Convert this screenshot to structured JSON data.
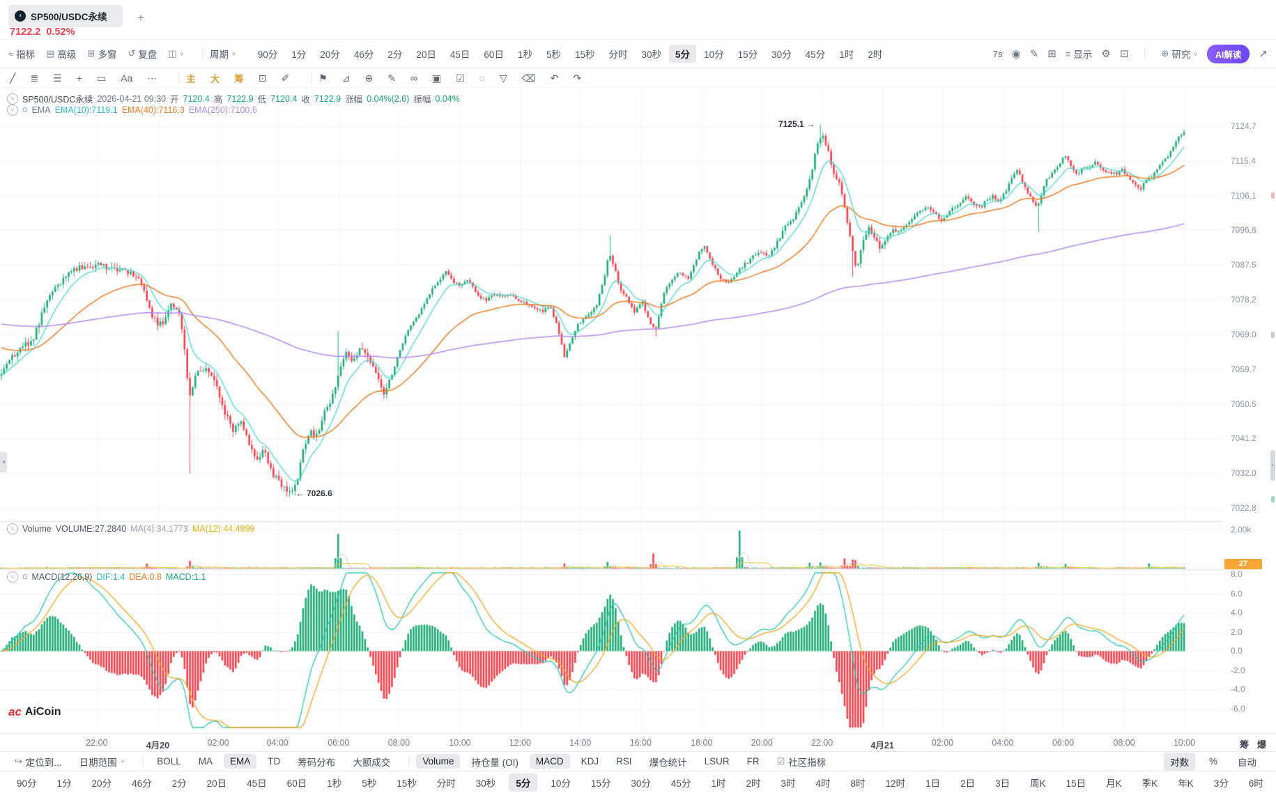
{
  "tab": {
    "symbol": "SP500/USDC永续",
    "price": "7122.2",
    "change": "0.52%",
    "add": "+"
  },
  "toolbar": {
    "menu": [
      {
        "name": "indicators",
        "label": "指标",
        "glyph": "≈"
      },
      {
        "name": "advanced",
        "label": "高级",
        "glyph": "▤"
      },
      {
        "name": "multi-window",
        "label": "多窗",
        "glyph": "⊞"
      },
      {
        "name": "replay",
        "label": "复盘",
        "glyph": "↺"
      }
    ],
    "chart_style_glyph": "◫",
    "cycle": "周期",
    "timeframes": [
      "90分",
      "1分",
      "20分",
      "46分",
      "2分",
      "20日",
      "45日",
      "60日",
      "1秒",
      "5秒",
      "15秒",
      "分时",
      "30秒",
      "5分",
      "10分",
      "15分",
      "30分",
      "45分",
      "1时",
      "2时"
    ],
    "selected": "5分",
    "countdown": "7s",
    "display": "显示",
    "research": "研究",
    "ai": "AI解读"
  },
  "draw_toolbar": {
    "tools": [
      {
        "name": "trendline-tool-icon",
        "glyph": "╱"
      },
      {
        "name": "horizontal-lines-tool-icon",
        "glyph": "≣"
      },
      {
        "name": "drawings-list-icon",
        "glyph": "☰"
      },
      {
        "name": "cross-tool-icon",
        "glyph": "+"
      },
      {
        "name": "rectangle-tool-icon",
        "glyph": "▭"
      },
      {
        "name": "text-tool-icon",
        "glyph": "Aa"
      },
      {
        "name": "more-tools-icon",
        "glyph": "⋯"
      },
      {
        "div": true
      },
      {
        "name": "main-chart-toggle",
        "glyph": "主",
        "gold": true
      },
      {
        "name": "large-view-toggle",
        "glyph": "大",
        "gold": true
      },
      {
        "name": "chip-distribution-toggle",
        "glyph": "筹",
        "gold": true
      },
      {
        "name": "chart-note-icon",
        "glyph": "⊡"
      },
      {
        "name": "brush-icon",
        "glyph": "✐"
      },
      {
        "div": true
      },
      {
        "name": "bookmark-icon",
        "glyph": "⚑"
      },
      {
        "name": "measure-icon",
        "glyph": "⊿"
      },
      {
        "name": "zoom-in-icon",
        "glyph": "⊕"
      },
      {
        "name": "highlighter-icon",
        "glyph": "✎"
      },
      {
        "name": "link-charts-icon",
        "glyph": "∞"
      },
      {
        "name": "clipboard-icon",
        "glyph": "▣"
      },
      {
        "name": "calendar-check-icon",
        "glyph": "☑"
      },
      {
        "name": "hide-drawings-icon",
        "glyph": "◌"
      },
      {
        "name": "filter-icon",
        "glyph": "▽"
      },
      {
        "name": "delete-icon",
        "glyph": "⌫"
      },
      {
        "name": "undo-icon",
        "glyph": "↶"
      },
      {
        "name": "redo-icon",
        "glyph": "↷"
      }
    ]
  },
  "overlays": {
    "ohlc": {
      "symbol": "SP500/USDC永续",
      "datetime": "2026-04-21 09:30",
      "o_label": "开",
      "o": "7120.4",
      "h_label": "高",
      "h": "7122.9",
      "l_label": "低",
      "l": "7120.4",
      "c_label": "收",
      "c": "7122.9",
      "chg_label": "涨幅",
      "chg": "0.04%(2.6)",
      "amp_label": "振幅",
      "amp": "0.04%"
    },
    "ema": {
      "label": "EMA",
      "e10": "EMA(10):7119.1",
      "e40": "EMA(40):7116.3",
      "e250": "EMA(250):7100.6"
    },
    "volume": {
      "label": "Volume",
      "vol": "VOLUME:27.2840",
      "ma4": "MA(4):34.1773",
      "ma12": "MA(12):44.4899"
    },
    "macd": {
      "label": "MACD(12,26,9)",
      "dif": "DIF:1.4",
      "dea": "DEA:0.8",
      "macd": "MACD:1.1"
    }
  },
  "axes": {
    "price": [
      "7124.7",
      "7115.4",
      "7106.1",
      "7096.8",
      "7087.5",
      "7078.2",
      "7069.0",
      "7059.7",
      "7050.5",
      "7041.2",
      "7032.0",
      "7022.8"
    ],
    "volume_top": "2.00k",
    "volume_badge": "27",
    "macd": [
      "8.0",
      "6.0",
      "4.0",
      "2.0",
      "0.0",
      "-2.0",
      "-4.0",
      "-6.0"
    ],
    "time": [
      {
        "t": "22:00",
        "f": 0.0793
      },
      {
        "t": "4月20",
        "f": 0.1293,
        "bold": true
      },
      {
        "t": "02:00",
        "f": 0.1787
      },
      {
        "t": "04:00",
        "f": 0.2273
      },
      {
        "t": "06:00",
        "f": 0.2773
      },
      {
        "t": "08:00",
        "f": 0.3267
      },
      {
        "t": "10:00",
        "f": 0.3767
      },
      {
        "t": "12:00",
        "f": 0.426
      },
      {
        "t": "14:00",
        "f": 0.4753
      },
      {
        "t": "16:00",
        "f": 0.5247
      },
      {
        "t": "18:00",
        "f": 0.5747
      },
      {
        "t": "20:00",
        "f": 0.624
      },
      {
        "t": "22:00",
        "f": 0.6733
      },
      {
        "t": "4月21",
        "f": 0.7227,
        "bold": true
      },
      {
        "t": "02:00",
        "f": 0.772
      },
      {
        "t": "04:00",
        "f": 0.8213
      },
      {
        "t": "06:00",
        "f": 0.8707
      },
      {
        "t": "08:00",
        "f": 0.9207
      },
      {
        "t": "10:00",
        "f": 0.97
      }
    ],
    "side": [
      "筹",
      "爆"
    ]
  },
  "annotations": {
    "high": "7125.1 →",
    "low": "← 7026.6"
  },
  "logo": {
    "mark": "ac",
    "name": "AiCoin"
  },
  "bottom": {
    "goto": "定位到...",
    "range": "日期范围",
    "groups": [
      [
        {
          "l": "BOLL"
        },
        {
          "l": "MA"
        },
        {
          "l": "EMA",
          "sel": true
        },
        {
          "l": "TD"
        },
        {
          "l": "筹码分布"
        },
        {
          "l": "大额成交"
        }
      ],
      [
        {
          "l": "Volume",
          "sel": true
        },
        {
          "l": "持仓量 (OI)"
        },
        {
          "l": "MACD",
          "sel": true
        },
        {
          "l": "KDJ"
        },
        {
          "l": "RSI"
        },
        {
          "l": "爆仓统计"
        },
        {
          "l": "LSUR"
        },
        {
          "l": "FR"
        }
      ]
    ],
    "community": "社区指标",
    "right": [
      {
        "l": "对数",
        "sel": true
      },
      {
        "l": "%"
      },
      {
        "l": "自动"
      }
    ]
  },
  "bottom_timeframes": {
    "list": [
      "90分",
      "1分",
      "20分",
      "46分",
      "2分",
      "20日",
      "45日",
      "60日",
      "1秒",
      "5秒",
      "15秒",
      "分时",
      "30秒",
      "5分",
      "10分",
      "15分",
      "30分",
      "45分",
      "1时",
      "2时",
      "3时",
      "4时",
      "8时",
      "12时",
      "1日",
      "2日",
      "3日",
      "周K",
      "15日",
      "月K",
      "季K",
      "年K",
      "3分",
      "6时"
    ],
    "selected": "5分",
    "close": "×"
  },
  "colors": {
    "up": "#1fab75",
    "down": "#f0424e",
    "ema10": "#3ed6cc",
    "ema40": "#ef7d25",
    "ema250": "#b08af2",
    "vol_ma12": "#f0c425",
    "vol_ma4": "#c3c9d0",
    "dif": "#2cc7b0",
    "dea": "#f5a623",
    "grid": "#f2f3f5",
    "divider": "#e7e9ec",
    "badge": "#f5a634",
    "ai_accent": "#6b47f0",
    "red_text": "#f0424e",
    "gold": "#d9a23a"
  },
  "chart_data": {
    "type": "candlestick+volume+macd",
    "symbol": "SP500/USDC永续",
    "interval": "5分",
    "date_shown": "2026-04-21 09:30",
    "candle_count": 440,
    "price_axis_ticks": [
      7124.7,
      7115.4,
      7106.1,
      7096.8,
      7087.5,
      7078.2,
      7069.0,
      7059.7,
      7050.5,
      7041.2,
      7032.0,
      7022.8
    ],
    "ohlc_current": {
      "open": 7120.4,
      "high": 7122.9,
      "low": 7120.4,
      "close": 7122.9,
      "change": "0.04%",
      "change_abs": 2.6,
      "amplitude": "0.04%"
    },
    "ema_values": {
      "ema10": 7119.1,
      "ema40": 7116.3,
      "ema250": 7100.6
    },
    "volume_info": {
      "current": 27.284,
      "ma4": 34.1773,
      "ma12": 44.4899,
      "axis_max": 2000
    },
    "macd_info": {
      "dif": 1.4,
      "dea": 0.8,
      "macd": 1.1,
      "axis_range": [
        -6,
        8
      ],
      "display_gain": 1.35
    },
    "extremes": {
      "high": {
        "f": 0.692,
        "price": 7125.1
      },
      "low": {
        "f": 0.245,
        "price": 7026.6
      }
    },
    "price_path": [
      [
        0,
        7059
      ],
      [
        0.01,
        7063
      ],
      [
        0.027,
        7068
      ],
      [
        0.041,
        7080
      ],
      [
        0.058,
        7086
      ],
      [
        0.082,
        7088
      ],
      [
        0.103,
        7086
      ],
      [
        0.118,
        7084
      ],
      [
        0.127,
        7074
      ],
      [
        0.137,
        7071
      ],
      [
        0.144,
        7078
      ],
      [
        0.152,
        7073
      ],
      [
        0.159,
        7052
      ],
      [
        0.166,
        7059
      ],
      [
        0.175,
        7060
      ],
      [
        0.182,
        7055
      ],
      [
        0.189,
        7048
      ],
      [
        0.196,
        7043
      ],
      [
        0.202,
        7047
      ],
      [
        0.209,
        7040
      ],
      [
        0.216,
        7036
      ],
      [
        0.223,
        7038
      ],
      [
        0.23,
        7031
      ],
      [
        0.237,
        7029
      ],
      [
        0.245,
        7027
      ],
      [
        0.251,
        7031
      ],
      [
        0.255,
        7038
      ],
      [
        0.261,
        7044
      ],
      [
        0.266,
        7041
      ],
      [
        0.272,
        7048
      ],
      [
        0.278,
        7050
      ],
      [
        0.285,
        7059
      ],
      [
        0.292,
        7064
      ],
      [
        0.297,
        7062
      ],
      [
        0.304,
        7066
      ],
      [
        0.311,
        7062
      ],
      [
        0.318,
        7058
      ],
      [
        0.323,
        7053
      ],
      [
        0.329,
        7057
      ],
      [
        0.336,
        7064
      ],
      [
        0.343,
        7070
      ],
      [
        0.35,
        7073
      ],
      [
        0.357,
        7077
      ],
      [
        0.364,
        7081
      ],
      [
        0.371,
        7084
      ],
      [
        0.377,
        7086
      ],
      [
        0.382,
        7083
      ],
      [
        0.388,
        7082
      ],
      [
        0.395,
        7084
      ],
      [
        0.402,
        7080
      ],
      [
        0.409,
        7078
      ],
      [
        0.416,
        7080
      ],
      [
        0.423,
        7079
      ],
      [
        0.43,
        7080
      ],
      [
        0.436,
        7078
      ],
      [
        0.445,
        7077
      ],
      [
        0.452,
        7076
      ],
      [
        0.458,
        7075
      ],
      [
        0.464,
        7077
      ],
      [
        0.471,
        7070
      ],
      [
        0.476,
        7063
      ],
      [
        0.481,
        7067
      ],
      [
        0.488,
        7072
      ],
      [
        0.495,
        7074
      ],
      [
        0.502,
        7076
      ],
      [
        0.509,
        7083
      ],
      [
        0.514,
        7091
      ],
      [
        0.519,
        7086
      ],
      [
        0.524,
        7081
      ],
      [
        0.529,
        7079
      ],
      [
        0.535,
        7075
      ],
      [
        0.542,
        7078
      ],
      [
        0.548,
        7072
      ],
      [
        0.553,
        7070
      ],
      [
        0.56,
        7080
      ],
      [
        0.567,
        7084
      ],
      [
        0.574,
        7086
      ],
      [
        0.581,
        7084
      ],
      [
        0.587,
        7089
      ],
      [
        0.594,
        7093
      ],
      [
        0.601,
        7088
      ],
      [
        0.608,
        7084
      ],
      [
        0.615,
        7083
      ],
      [
        0.622,
        7086
      ],
      [
        0.629,
        7088
      ],
      [
        0.636,
        7090
      ],
      [
        0.642,
        7091
      ],
      [
        0.649,
        7090
      ],
      [
        0.656,
        7094
      ],
      [
        0.663,
        7098
      ],
      [
        0.67,
        7100
      ],
      [
        0.677,
        7104
      ],
      [
        0.684,
        7111
      ],
      [
        0.689,
        7119
      ],
      [
        0.694,
        7122
      ],
      [
        0.699,
        7118
      ],
      [
        0.703,
        7113
      ],
      [
        0.709,
        7109
      ],
      [
        0.714,
        7101
      ],
      [
        0.72,
        7091
      ],
      [
        0.723,
        7086
      ],
      [
        0.728,
        7094
      ],
      [
        0.734,
        7098
      ],
      [
        0.738,
        7095
      ],
      [
        0.743,
        7092
      ],
      [
        0.749,
        7095
      ],
      [
        0.754,
        7097
      ],
      [
        0.759,
        7096
      ],
      [
        0.764,
        7098
      ],
      [
        0.769,
        7100
      ],
      [
        0.776,
        7102
      ],
      [
        0.783,
        7103
      ],
      [
        0.79,
        7101
      ],
      [
        0.795,
        7099
      ],
      [
        0.8,
        7101
      ],
      [
        0.805,
        7103
      ],
      [
        0.811,
        7104
      ],
      [
        0.816,
        7106
      ],
      [
        0.822,
        7104
      ],
      [
        0.828,
        7103
      ],
      [
        0.833,
        7105
      ],
      [
        0.838,
        7106
      ],
      [
        0.843,
        7105
      ],
      [
        0.849,
        7107
      ],
      [
        0.854,
        7111
      ],
      [
        0.859,
        7113
      ],
      [
        0.863,
        7110
      ],
      [
        0.867,
        7107
      ],
      [
        0.872,
        7105
      ],
      [
        0.876,
        7103
      ],
      [
        0.88,
        7107
      ],
      [
        0.883,
        7110
      ],
      [
        0.888,
        7112
      ],
      [
        0.894,
        7114
      ],
      [
        0.899,
        7117
      ],
      [
        0.904,
        7114
      ],
      [
        0.909,
        7112
      ],
      [
        0.914,
        7113
      ],
      [
        0.92,
        7114
      ],
      [
        0.925,
        7115
      ],
      [
        0.931,
        7113
      ],
      [
        0.936,
        7112
      ],
      [
        0.942,
        7112
      ],
      [
        0.947,
        7113
      ],
      [
        0.953,
        7111
      ],
      [
        0.958,
        7109
      ],
      [
        0.963,
        7108
      ],
      [
        0.968,
        7110
      ],
      [
        0.974,
        7112
      ],
      [
        0.979,
        7114
      ],
      [
        0.985,
        7116
      ],
      [
        0.99,
        7119
      ],
      [
        0.996,
        7122
      ],
      [
        1,
        7123
      ]
    ],
    "forced_wicks": [
      {
        "f": 0.245,
        "low": 7026.6
      },
      {
        "f": 0.159,
        "low": 7032.0
      },
      {
        "f": 0.285,
        "high": 7070
      },
      {
        "f": 0.692,
        "high": 7125.1
      },
      {
        "f": 0.876,
        "low": 7096.5
      },
      {
        "f": 0.553,
        "low": 7068.5
      },
      {
        "f": 0.514,
        "high": 7095.5
      },
      {
        "f": 0.72,
        "low": 7084.5
      }
    ],
    "volume_spikes": [
      {
        "f": 0.285,
        "v": 1780
      },
      {
        "f": 0.625,
        "v": 1950
      },
      {
        "f": 0.552,
        "v": 780
      },
      {
        "f": 0.714,
        "v": 520
      },
      {
        "f": 0.719,
        "v": 460
      },
      {
        "f": 0.723,
        "v": 430
      },
      {
        "f": 0.159,
        "v": 400
      },
      {
        "f": 0.513,
        "v": 340
      },
      {
        "f": 0.683,
        "v": 300
      },
      {
        "f": 0.877,
        "v": 300
      },
      {
        "f": 0.124,
        "v": 250
      },
      {
        "f": 0.476,
        "v": 260
      },
      {
        "f": 0.899,
        "v": 240
      },
      {
        "f": 0.692,
        "v": 320
      },
      {
        "f": 0.97,
        "v": 260
      }
    ]
  }
}
